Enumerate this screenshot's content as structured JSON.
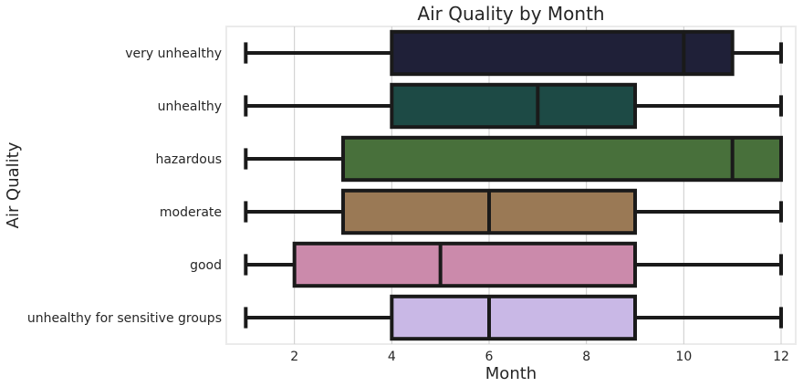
{
  "chart_data": {
    "type": "box",
    "orientation": "horizontal",
    "title": "Air Quality by Month",
    "xlabel": "Month",
    "ylabel": "Air Quality",
    "xlim": [
      0.6,
      12.3
    ],
    "xticks": [
      2,
      4,
      6,
      8,
      10,
      12
    ],
    "grid": "vertical",
    "categories": [
      "very unhealthy",
      "unhealthy",
      "hazardous",
      "moderate",
      "good",
      "unhealthy for sensitive groups"
    ],
    "boxes": [
      {
        "category": "very unhealthy",
        "min": 1,
        "q1": 4,
        "median": 10,
        "q3": 11,
        "max": 12,
        "color": "#1f2038"
      },
      {
        "category": "unhealthy",
        "min": 1,
        "q1": 4,
        "median": 7,
        "q3": 9,
        "max": 12,
        "color": "#1d4a45"
      },
      {
        "category": "hazardous",
        "min": 1,
        "q1": 3,
        "median": 11,
        "q3": 12,
        "max": 12,
        "color": "#48703b"
      },
      {
        "category": "moderate",
        "min": 1,
        "q1": 3,
        "median": 6,
        "q3": 9,
        "max": 12,
        "color": "#9a7955"
      },
      {
        "category": "good",
        "min": 1,
        "q1": 2,
        "median": 5,
        "q3": 9,
        "max": 12,
        "color": "#cb8aab"
      },
      {
        "category": "unhealthy for sensitive groups",
        "min": 1,
        "q1": 4,
        "median": 6,
        "q3": 9,
        "max": 12,
        "color": "#c9b8e6"
      }
    ]
  }
}
